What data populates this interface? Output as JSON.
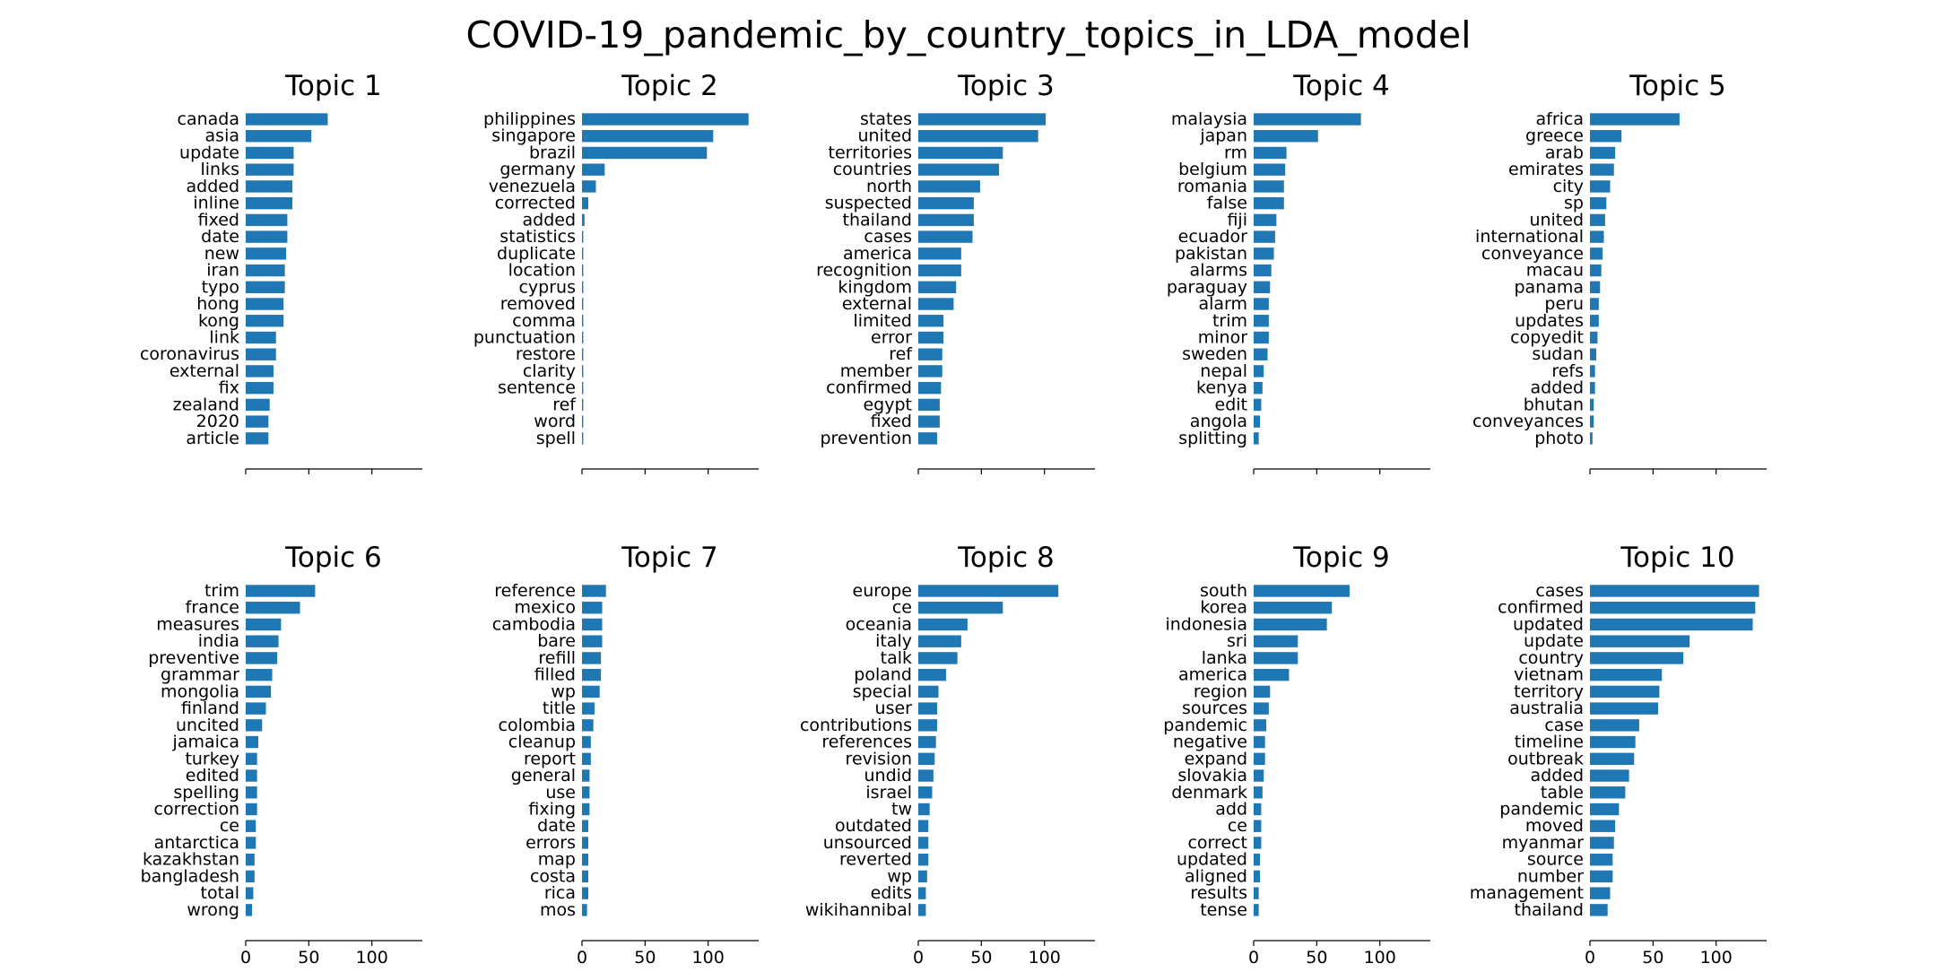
{
  "chart_data": {
    "type": "bar",
    "title": "COVID-19_pandemic_by_country_topics_in_LDA_model",
    "bar_color": "#1f77b4",
    "xlim": [
      0,
      140
    ],
    "x_ticks": [
      0,
      50,
      100
    ],
    "tick_labels_shown_on_bottom_row_only": true,
    "grid": false,
    "subplots": [
      {
        "title": "Topic 1",
        "categories": [
          "canada",
          "asia",
          "update",
          "links",
          "added",
          "inline",
          "fixed",
          "date",
          "new",
          "iran",
          "typo",
          "hong",
          "kong",
          "link",
          "coronavirus",
          "external",
          "fix",
          "zealand",
          "2020",
          "article"
        ],
        "values": [
          65,
          52,
          38,
          38,
          37,
          37,
          33,
          33,
          32,
          31,
          31,
          30,
          30,
          24,
          24,
          22,
          22,
          19,
          18,
          18
        ]
      },
      {
        "title": "Topic 2",
        "categories": [
          "philippines",
          "singapore",
          "brazil",
          "germany",
          "venezuela",
          "corrected",
          "added",
          "statistics",
          "duplicate",
          "location",
          "cyprus",
          "removed",
          "comma",
          "punctuation",
          "restore",
          "clarity",
          "sentence",
          "ref",
          "word",
          "spell"
        ],
        "values": [
          132,
          104,
          99,
          18,
          11,
          5,
          2,
          1,
          1,
          1,
          1,
          1,
          1,
          1,
          1,
          1,
          1,
          1,
          1,
          1
        ]
      },
      {
        "title": "Topic 3",
        "categories": [
          "states",
          "united",
          "territories",
          "countries",
          "north",
          "suspected",
          "thailand",
          "cases",
          "america",
          "recognition",
          "kingdom",
          "external",
          "limited",
          "error",
          "ref",
          "member",
          "confirmed",
          "egypt",
          "fixed",
          "prevention"
        ],
        "values": [
          101,
          95,
          67,
          64,
          49,
          44,
          44,
          43,
          34,
          34,
          30,
          28,
          20,
          20,
          19,
          19,
          18,
          17,
          17,
          15
        ]
      },
      {
        "title": "Topic 4",
        "categories": [
          "malaysia",
          "japan",
          "rm",
          "belgium",
          "romania",
          "false",
          "fiji",
          "ecuador",
          "pakistan",
          "alarms",
          "paraguay",
          "alarm",
          "trim",
          "minor",
          "sweden",
          "nepal",
          "kenya",
          "edit",
          "angola",
          "splitting"
        ],
        "values": [
          85,
          51,
          26,
          25,
          24,
          24,
          18,
          17,
          16,
          14,
          13,
          12,
          12,
          12,
          11,
          8,
          7,
          6,
          5,
          4
        ]
      },
      {
        "title": "Topic 5",
        "categories": [
          "africa",
          "greece",
          "arab",
          "emirates",
          "city",
          "sp",
          "united",
          "international",
          "conveyance",
          "macau",
          "panama",
          "peru",
          "updates",
          "copyedit",
          "sudan",
          "refs",
          "added",
          "bhutan",
          "conveyances",
          "photo"
        ],
        "values": [
          71,
          25,
          20,
          19,
          16,
          13,
          12,
          11,
          10,
          9,
          8,
          7,
          7,
          6,
          5,
          4,
          4,
          3,
          3,
          2
        ]
      },
      {
        "title": "Topic 6",
        "categories": [
          "trim",
          "france",
          "measures",
          "india",
          "preventive",
          "grammar",
          "mongolia",
          "finland",
          "uncited",
          "jamaica",
          "turkey",
          "edited",
          "spelling",
          "correction",
          "ce",
          "antarctica",
          "kazakhstan",
          "bangladesh",
          "total",
          "wrong"
        ],
        "values": [
          55,
          43,
          28,
          26,
          25,
          21,
          20,
          16,
          13,
          10,
          9,
          9,
          9,
          9,
          8,
          8,
          7,
          7,
          6,
          5
        ]
      },
      {
        "title": "Topic 7",
        "categories": [
          "reference",
          "mexico",
          "cambodia",
          "bare",
          "refill",
          "filled",
          "wp",
          "title",
          "colombia",
          "cleanup",
          "report",
          "general",
          "use",
          "fixing",
          "date",
          "errors",
          "map",
          "costa",
          "rica",
          "mos"
        ],
        "values": [
          19,
          16,
          16,
          16,
          15,
          15,
          14,
          10,
          9,
          7,
          7,
          6,
          6,
          6,
          5,
          5,
          5,
          5,
          5,
          4
        ]
      },
      {
        "title": "Topic 8",
        "categories": [
          "europe",
          "ce",
          "oceania",
          "italy",
          "talk",
          "poland",
          "special",
          "user",
          "contributions",
          "references",
          "revision",
          "undid",
          "israel",
          "tw",
          "outdated",
          "unsourced",
          "reverted",
          "wp",
          "edits",
          "wikihannibal"
        ],
        "values": [
          111,
          67,
          39,
          34,
          31,
          22,
          16,
          15,
          15,
          14,
          13,
          12,
          11,
          9,
          8,
          8,
          8,
          7,
          6,
          6
        ]
      },
      {
        "title": "Topic 9",
        "categories": [
          "south",
          "korea",
          "indonesia",
          "sri",
          "lanka",
          "america",
          "region",
          "sources",
          "pandemic",
          "negative",
          "expand",
          "slovakia",
          "denmark",
          "add",
          "ce",
          "correct",
          "updated",
          "aligned",
          "results",
          "tense"
        ],
        "values": [
          76,
          62,
          58,
          35,
          35,
          28,
          13,
          12,
          10,
          9,
          9,
          8,
          7,
          6,
          6,
          6,
          5,
          5,
          4,
          4
        ]
      },
      {
        "title": "Topic 10",
        "categories": [
          "cases",
          "confirmed",
          "updated",
          "update",
          "country",
          "vietnam",
          "territory",
          "australia",
          "case",
          "timeline",
          "outbreak",
          "added",
          "table",
          "pandemic",
          "moved",
          "myanmar",
          "source",
          "number",
          "management",
          "thailand"
        ],
        "values": [
          134,
          131,
          129,
          79,
          74,
          57,
          55,
          54,
          39,
          36,
          35,
          31,
          28,
          23,
          20,
          19,
          18,
          18,
          16,
          14
        ]
      }
    ]
  }
}
